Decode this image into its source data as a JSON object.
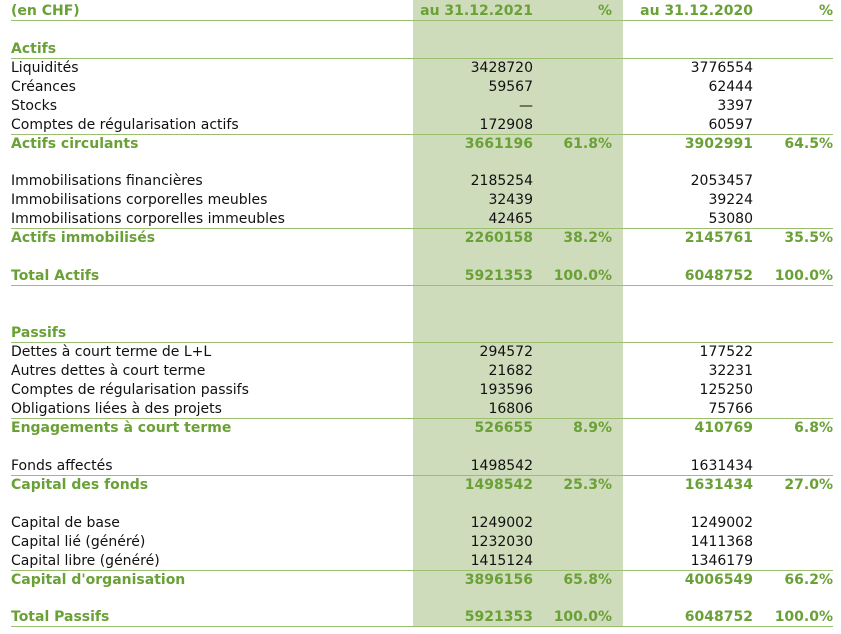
{
  "header": {
    "unit": "(en CHF)",
    "col2021": "au 31.12.2021",
    "pct2021": "%",
    "col2020": "au 31.12.2020",
    "pct2020": "%"
  },
  "actifs": {
    "title": "Actifs",
    "rows": [
      {
        "label": "Liquidités",
        "v2021": "3428720",
        "v2020": "3776554"
      },
      {
        "label": "Créances",
        "v2021": "59567",
        "v2020": "62444"
      },
      {
        "label": "Stocks",
        "v2021": "—",
        "v2020": "3397"
      },
      {
        "label": "Comptes de régularisation actifs",
        "v2021": "172908",
        "v2020": "60597"
      }
    ],
    "circulants": {
      "label": "Actifs circulants",
      "v2021": "3661196",
      "p2021": "61.8%",
      "v2020": "3902991",
      "p2020": "64.5%"
    },
    "rows2": [
      {
        "label": "Immobilisations financières",
        "v2021": "2185254",
        "v2020": "2053457"
      },
      {
        "label": "Immobilisations corporelles meubles",
        "v2021": "32439",
        "v2020": "39224"
      },
      {
        "label": "Immobilisations corporelles immeubles",
        "v2021": "42465",
        "v2020": "53080"
      }
    ],
    "immobilises": {
      "label": "Actifs immobilisés",
      "v2021": "2260158",
      "p2021": "38.2%",
      "v2020": "2145761",
      "p2020": "35.5%"
    },
    "total": {
      "label": "Total Actifs",
      "v2021": "5921353",
      "p2021": "100.0%",
      "v2020": "6048752",
      "p2020": "100.0%"
    }
  },
  "passifs": {
    "title": "Passifs",
    "rows": [
      {
        "label": "Dettes à court terme de L+L",
        "v2021": "294572",
        "v2020": "177522"
      },
      {
        "label": "Autres dettes à court terme",
        "v2021": "21682",
        "v2020": "32231"
      },
      {
        "label": "Comptes de régularisation passifs",
        "v2021": "193596",
        "v2020": "125250"
      },
      {
        "label": "Obligations liées à des projets",
        "v2021": "16806",
        "v2020": "75766"
      }
    ],
    "engagements": {
      "label": "Engagements à court terme",
      "v2021": "526655",
      "p2021": "8.9%",
      "v2020": "410769",
      "p2020": "6.8%"
    },
    "fonds_affectes": {
      "label": "Fonds affectés",
      "v2021": "1498542",
      "v2020": "1631434"
    },
    "capital_fonds": {
      "label": "Capital des fonds",
      "v2021": "1498542",
      "p2021": "25.3%",
      "v2020": "1631434",
      "p2020": "27.0%"
    },
    "rows3": [
      {
        "label": "Capital de base",
        "v2021": "1249002",
        "v2020": "1249002"
      },
      {
        "label": "Capital lié (généré)",
        "v2021": "1232030",
        "v2020": "1411368"
      },
      {
        "label": "Capital libre (généré)",
        "v2021": "1415124",
        "v2020": "1346179"
      }
    ],
    "capital_org": {
      "label": "Capital d'organisation",
      "v2021": "3896156",
      "p2021": "65.8%",
      "v2020": "4006549",
      "p2020": "66.2%"
    },
    "total": {
      "label": "Total Passifs",
      "v2021": "5921353",
      "p2021": "100.0%",
      "v2020": "6048752",
      "p2020": "100.0%"
    }
  }
}
